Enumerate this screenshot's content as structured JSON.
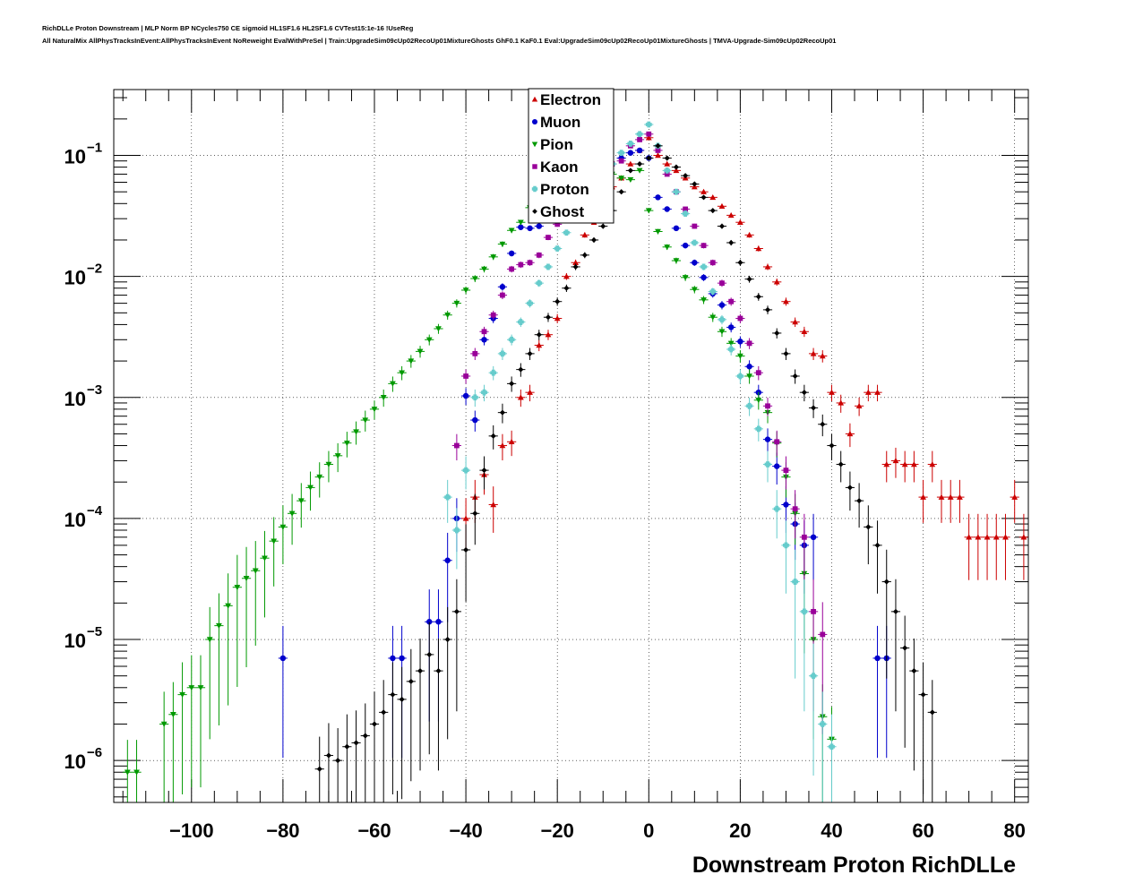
{
  "header": {
    "title_line1": "RichDLLe Proton Downstream | MLP Norm BP NCycles750 CE sigmoid HL1SF1.6 HL2SF1.6 CVTest15:1e-16 !UseReg",
    "title_line2": "All NaturalMix AllPhysTracksInEvent:AllPhysTracksInEvent NoReweight EvalWithPreSel | Train:UpgradeSim09cUp02RecoUp01MixtureGhosts GhF0.1 KaF0.1 Eval:UpgradeSim09cUp02RecoUp01MixtureGhosts | TMVA-Upgrade-Sim09cUp02RecoUp01"
  },
  "chart_data": {
    "type": "scatter",
    "xlabel": "Downstream Proton RichDLLe",
    "ylabel": "",
    "xlim": [
      -117,
      83
    ],
    "ylim": [
      4.5e-07,
      0.35
    ],
    "yscale": "log",
    "grid": true,
    "legend_position": "top-center",
    "x_ticks": [
      -100,
      -80,
      -60,
      -40,
      -20,
      0,
      20,
      40,
      60,
      80
    ],
    "x_tick_labels": [
      "−100",
      "−80",
      "−60",
      "−40",
      "−20",
      "0",
      "20",
      "40",
      "60",
      "80"
    ],
    "y_ticks": [
      1e-06,
      1e-05,
      0.0001,
      0.001,
      0.01,
      0.1
    ],
    "y_tick_bases": [
      "10",
      "10",
      "10",
      "10",
      "10",
      "10"
    ],
    "y_tick_exponents": [
      "−6",
      "−5",
      "−4",
      "−3",
      "−2",
      "−1"
    ],
    "series": [
      {
        "name": "Electron",
        "color": "#cc0000",
        "marker": "triangle-up",
        "x": [
          -40,
          -38,
          -36,
          -34,
          -32,
          -30,
          -28,
          -26,
          -24,
          -22,
          -20,
          -18,
          -16,
          -14,
          -12,
          -10,
          -8,
          -6,
          -4,
          -2,
          0,
          2,
          4,
          6,
          8,
          10,
          12,
          14,
          16,
          18,
          20,
          22,
          24,
          26,
          28,
          30,
          32,
          34,
          36,
          38,
          40,
          42,
          44,
          46,
          48,
          50,
          52,
          54,
          56,
          58,
          60,
          62,
          64,
          66,
          68,
          70,
          72,
          74,
          76,
          78,
          80,
          82
        ],
        "y": [
          0.0001,
          0.00015,
          0.00023,
          0.00013,
          0.0004,
          0.00043,
          0.001,
          0.0011,
          0.0027,
          0.0033,
          0.0045,
          0.01,
          0.013,
          0.022,
          0.028,
          0.04,
          0.055,
          0.065,
          0.085,
          0.11,
          0.14,
          0.1,
          0.085,
          0.075,
          0.065,
          0.055,
          0.05,
          0.045,
          0.038,
          0.032,
          0.028,
          0.022,
          0.017,
          0.012,
          0.009,
          0.0062,
          0.0042,
          0.0035,
          0.0023,
          0.0022,
          0.0011,
          0.0009,
          0.0005,
          0.00085,
          0.0011,
          0.0011,
          0.00028,
          0.0003,
          0.00028,
          0.00028,
          0.00015,
          0.00028,
          0.00015,
          0.00015,
          0.00015,
          7e-05,
          7e-05,
          7e-05,
          7e-05,
          7e-05,
          0.00015,
          7e-05
        ]
      },
      {
        "name": "Muon",
        "color": "#0000cc",
        "marker": "circle",
        "x": [
          -80,
          -56,
          -54,
          -48,
          -46,
          -44,
          -42,
          -40,
          -38,
          -36,
          -34,
          -32,
          -30,
          -28,
          -26,
          -24,
          -22,
          -20,
          -18,
          -16,
          -14,
          -12,
          -10,
          -8,
          -6,
          -4,
          -2,
          0,
          2,
          4,
          6,
          8,
          10,
          12,
          14,
          16,
          18,
          20,
          22,
          24,
          26,
          28,
          30,
          32,
          34,
          36,
          50,
          52
        ],
        "y": [
          7e-06,
          7e-06,
          7e-06,
          1.4e-05,
          1.4e-05,
          4.5e-05,
          0.0001,
          0.00103,
          0.00065,
          0.003,
          0.0045,
          0.0082,
          0.0155,
          0.0255,
          0.025,
          0.026,
          0.04,
          0.0735,
          0.065,
          0.06,
          0.0615,
          0.07,
          0.07,
          0.085,
          0.095,
          0.105,
          0.11,
          0.095,
          0.045,
          0.036,
          0.025,
          0.018,
          0.013,
          0.0098,
          0.0072,
          0.0058,
          0.0038,
          0.0029,
          0.0018,
          0.0011,
          0.00045,
          0.00027,
          0.00013,
          9e-05,
          6e-05,
          7e-05,
          7e-06,
          7e-06
        ]
      },
      {
        "name": "Pion",
        "color": "#009900",
        "marker": "triangle-down",
        "x": [
          -114,
          -112,
          -106,
          -104,
          -102,
          -100,
          -98,
          -96,
          -94,
          -92,
          -90,
          -88,
          -86,
          -84,
          -82,
          -80,
          -78,
          -76,
          -74,
          -72,
          -70,
          -68,
          -66,
          -64,
          -62,
          -60,
          -58,
          -56,
          -54,
          -52,
          -50,
          -48,
          -46,
          -44,
          -42,
          -40,
          -38,
          -36,
          -34,
          -32,
          -30,
          -28,
          -26,
          -24,
          -22,
          -20,
          -18,
          -16,
          -14,
          -12,
          -10,
          -8,
          -6,
          -4,
          -2,
          0,
          2,
          4,
          6,
          8,
          10,
          12,
          14,
          16,
          18,
          20,
          22,
          24,
          26,
          28,
          30,
          32,
          34,
          36,
          38,
          40
        ],
        "y": [
          8e-07,
          8e-07,
          2e-06,
          2.4e-06,
          3.5e-06,
          4e-06,
          4e-06,
          1e-05,
          1.3e-05,
          1.9e-05,
          2.7e-05,
          3.2e-05,
          3.7e-05,
          4.7e-05,
          6.5e-05,
          8.5e-05,
          0.00011,
          0.00014,
          0.00018,
          0.00022,
          0.00028,
          0.00033,
          0.00042,
          0.00052,
          0.00065,
          0.0008,
          0.001,
          0.0013,
          0.0016,
          0.002,
          0.0024,
          0.003,
          0.0037,
          0.0048,
          0.006,
          0.0077,
          0.0096,
          0.0115,
          0.0145,
          0.0185,
          0.024,
          0.028,
          0.037,
          0.045,
          0.057,
          0.065,
          0.072,
          0.075,
          0.083,
          0.085,
          0.084,
          0.07,
          0.065,
          0.063,
          0.075,
          0.035,
          0.0235,
          0.0175,
          0.0135,
          0.0098,
          0.0078,
          0.0064,
          0.0046,
          0.0035,
          0.0028,
          0.0022,
          0.0015,
          0.00095,
          0.00075,
          0.00042,
          0.00022,
          0.00011,
          3.5e-05,
          1e-05,
          2.3e-06,
          1.5e-06
        ]
      },
      {
        "name": "Kaon",
        "color": "#990099",
        "marker": "square",
        "x": [
          -42,
          -40,
          -38,
          -36,
          -34,
          -32,
          -30,
          -28,
          -26,
          -24,
          -22,
          -20,
          -18,
          -16,
          -14,
          -12,
          -10,
          -8,
          -6,
          -4,
          -2,
          0,
          2,
          4,
          6,
          8,
          10,
          12,
          14,
          16,
          18,
          20,
          22,
          24,
          26,
          28,
          30,
          32,
          34,
          36,
          38
        ],
        "y": [
          0.0004,
          0.0015,
          0.0023,
          0.0035,
          0.0048,
          0.007,
          0.0115,
          0.0125,
          0.013,
          0.015,
          0.021,
          0.027,
          0.035,
          0.046,
          0.055,
          0.065,
          0.075,
          0.085,
          0.09,
          0.12,
          0.135,
          0.15,
          0.11,
          0.07,
          0.05,
          0.036,
          0.026,
          0.018,
          0.013,
          0.0088,
          0.0062,
          0.0045,
          0.0028,
          0.0016,
          0.00085,
          0.00043,
          0.00025,
          0.00012,
          7e-05,
          1.7e-05,
          1.1e-05
        ]
      },
      {
        "name": "Proton",
        "color": "#66cccc",
        "marker": "cross",
        "x": [
          -44,
          -42,
          -40,
          -38,
          -36,
          -34,
          -32,
          -30,
          -28,
          -26,
          -24,
          -22,
          -20,
          -18,
          -16,
          -14,
          -12,
          -10,
          -8,
          -6,
          -4,
          -2,
          0,
          2,
          4,
          6,
          8,
          10,
          12,
          14,
          16,
          18,
          20,
          22,
          24,
          26,
          28,
          30,
          32,
          34,
          36,
          38,
          40
        ],
        "y": [
          0.00015,
          8e-05,
          0.00025,
          0.001,
          0.0011,
          0.0016,
          0.0023,
          0.003,
          0.0042,
          0.006,
          0.0088,
          0.012,
          0.017,
          0.023,
          0.03,
          0.04,
          0.055,
          0.07,
          0.085,
          0.105,
          0.125,
          0.15,
          0.18,
          0.12,
          0.075,
          0.05,
          0.033,
          0.019,
          0.012,
          0.0075,
          0.0044,
          0.0025,
          0.0015,
          0.00085,
          0.00055,
          0.00028,
          0.00012,
          6e-05,
          3e-05,
          1.7e-05,
          5e-06,
          2e-06,
          1.3e-06
        ]
      },
      {
        "name": "Ghost",
        "color": "#000000",
        "marker": "star",
        "x": [
          -72,
          -70,
          -68,
          -66,
          -64,
          -62,
          -60,
          -58,
          -56,
          -54,
          -52,
          -50,
          -48,
          -46,
          -44,
          -42,
          -40,
          -38,
          -36,
          -34,
          -32,
          -30,
          -28,
          -26,
          -24,
          -22,
          -20,
          -18,
          -16,
          -14,
          -12,
          -10,
          -8,
          -6,
          -4,
          -2,
          0,
          2,
          4,
          6,
          8,
          10,
          12,
          14,
          16,
          18,
          20,
          22,
          24,
          26,
          28,
          30,
          32,
          34,
          36,
          38,
          40,
          42,
          44,
          46,
          48,
          50,
          52,
          54,
          56,
          58,
          60,
          62
        ],
        "y": [
          8.5e-07,
          1.1e-06,
          1e-06,
          1.3e-06,
          1.4e-06,
          1.6e-06,
          2e-06,
          2.5e-06,
          3.5e-06,
          3.2e-06,
          4.5e-06,
          5.5e-06,
          7.5e-06,
          5.5e-06,
          1e-05,
          1.7e-05,
          5.5e-05,
          0.00011,
          0.00025,
          0.00048,
          0.00075,
          0.0013,
          0.0017,
          0.0023,
          0.0033,
          0.0046,
          0.0062,
          0.008,
          0.012,
          0.015,
          0.02,
          0.026,
          0.035,
          0.05,
          0.075,
          0.085,
          0.095,
          0.12,
          0.095,
          0.08,
          0.068,
          0.058,
          0.045,
          0.035,
          0.026,
          0.019,
          0.013,
          0.0095,
          0.0068,
          0.0053,
          0.0034,
          0.0023,
          0.0015,
          0.0011,
          0.00082,
          0.0006,
          0.0004,
          0.00028,
          0.00018,
          0.00014,
          8.5e-05,
          6e-05,
          3e-05,
          1.7e-05,
          8.5e-06,
          5.5e-06,
          3.5e-06,
          2.5e-06
        ]
      }
    ]
  }
}
